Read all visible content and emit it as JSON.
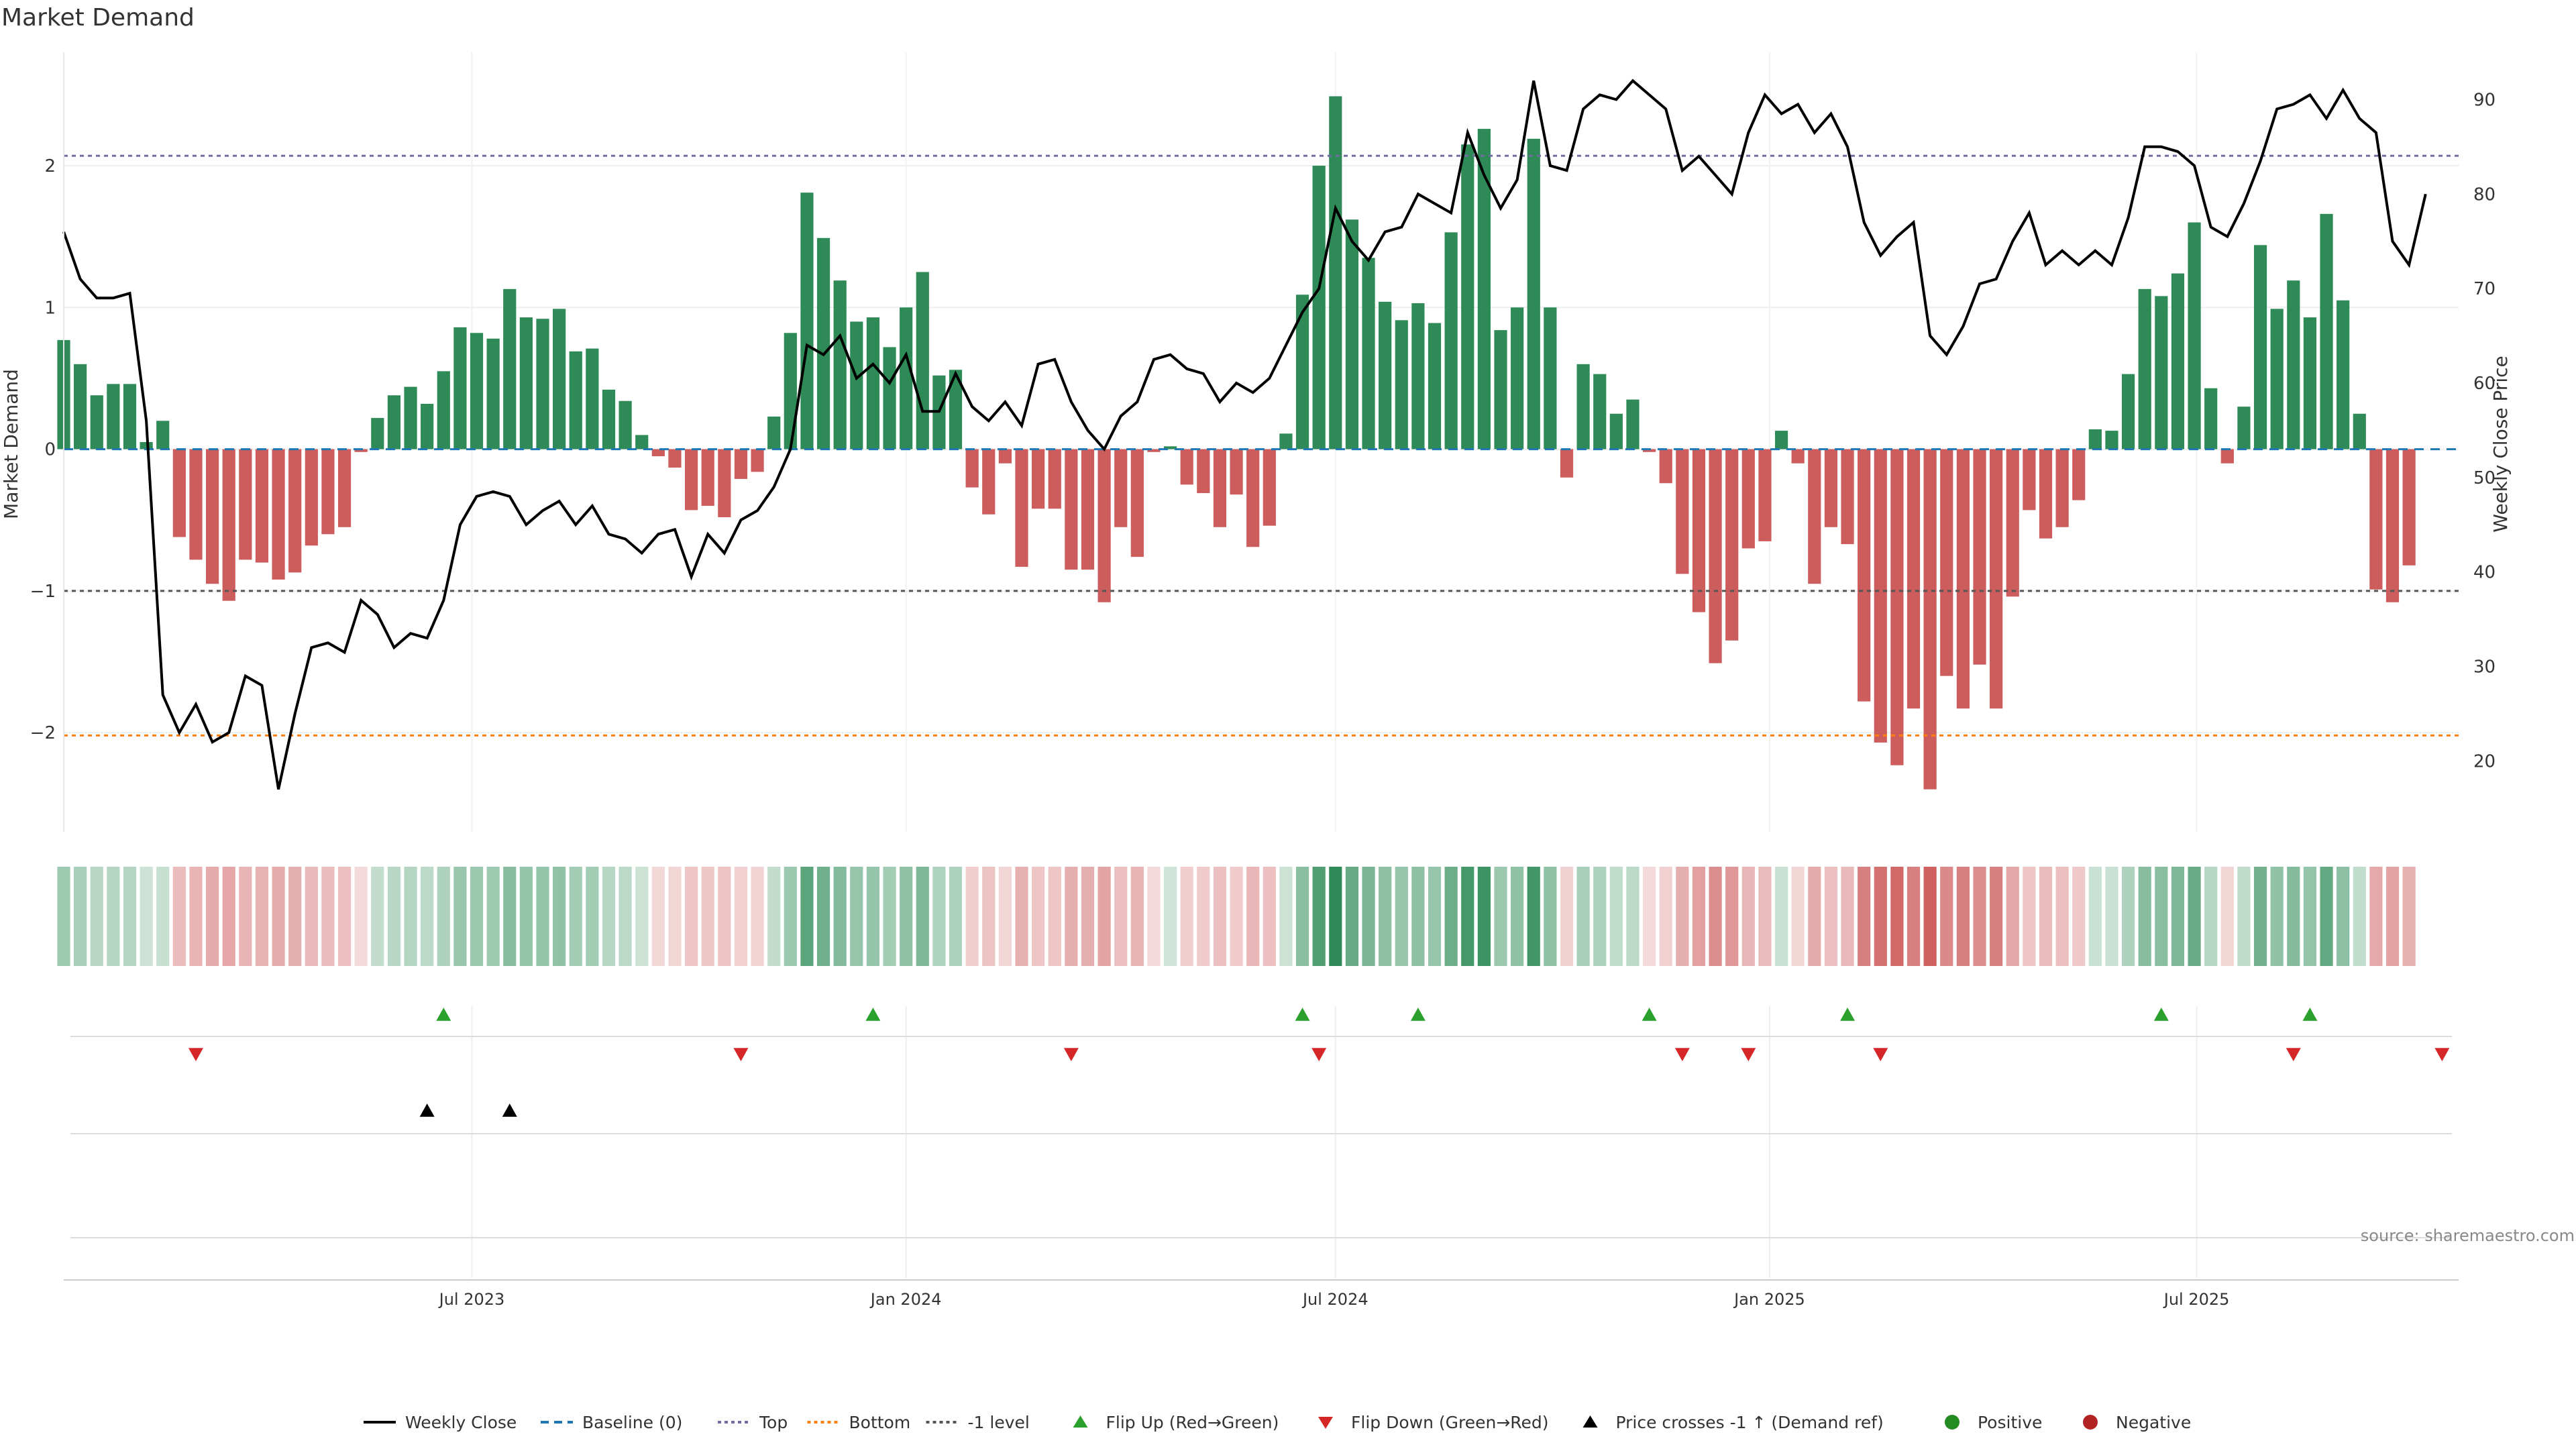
{
  "chart_data": {
    "type": "bar",
    "title": "Market Demand",
    "ylabel": "Market Demand",
    "y2label": "Weekly Close Price",
    "ylim": [
      -2.7,
      2.8
    ],
    "y2lim": [
      12.5,
      95
    ],
    "yticks": [
      -2,
      -1,
      0,
      1,
      2
    ],
    "y2ticks": [
      20,
      30,
      40,
      50,
      60,
      70,
      80,
      90
    ],
    "x_range": [
      "2023-01-09",
      "2025-10-20"
    ],
    "x_ticks": [
      {
        "date": "2023-07-01",
        "label": "Jul 2023"
      },
      {
        "date": "2024-01-01",
        "label": "Jan 2024"
      },
      {
        "date": "2024-07-01",
        "label": "Jul 2024"
      },
      {
        "date": "2025-01-01",
        "label": "Jan 2025"
      },
      {
        "date": "2025-07-01",
        "label": "Jul 2025"
      }
    ],
    "start_date": "2023-01-09",
    "levels": {
      "top": 2.07,
      "bottom": -2.02,
      "minus_one": -1.0,
      "baseline": 0
    },
    "demand": [
      0.77,
      0.6,
      0.38,
      0.46,
      0.46,
      0.05,
      0.2,
      -0.62,
      -0.78,
      -0.95,
      -1.07,
      -0.78,
      -0.8,
      -0.92,
      -0.87,
      -0.68,
      -0.6,
      -0.55,
      -0.02,
      0.22,
      0.38,
      0.44,
      0.32,
      0.55,
      0.86,
      0.82,
      0.78,
      1.13,
      0.93,
      0.92,
      0.99,
      0.69,
      0.71,
      0.42,
      0.34,
      0.1,
      -0.05,
      -0.13,
      -0.43,
      -0.4,
      -0.48,
      -0.21,
      -0.16,
      0.23,
      0.82,
      1.81,
      1.49,
      1.19,
      0.9,
      0.93,
      0.72,
      1.0,
      1.25,
      0.52,
      0.56,
      -0.27,
      -0.46,
      -0.1,
      -0.83,
      -0.42,
      -0.42,
      -0.85,
      -0.85,
      -1.08,
      -0.55,
      -0.76,
      -0.02,
      0.02,
      -0.25,
      -0.31,
      -0.55,
      -0.32,
      -0.69,
      -0.54,
      0.11,
      1.09,
      2.0,
      2.49,
      1.62,
      1.35,
      1.04,
      0.91,
      1.03,
      0.89,
      1.53,
      2.15,
      2.26,
      0.84,
      1.0,
      2.19,
      1.0,
      -0.2,
      0.6,
      0.53,
      0.25,
      0.35,
      -0.02,
      -0.24,
      -0.88,
      -1.15,
      -1.51,
      -1.35,
      -0.7,
      -0.65,
      0.13,
      -0.1,
      -0.95,
      -0.55,
      -0.67,
      -1.78,
      -2.07,
      -2.23,
      -1.83,
      -2.4,
      -1.6,
      -1.83,
      -1.52,
      -1.83,
      -1.04,
      -0.43,
      -0.63,
      -0.55,
      -0.36,
      0.14,
      0.13,
      0.53,
      1.13,
      1.08,
      1.24,
      1.6,
      0.43,
      -0.1,
      0.3,
      1.44,
      0.99,
      1.19,
      0.93,
      1.66,
      1.05,
      0.25,
      -0.99,
      -1.08,
      -0.82
    ],
    "close": [
      76,
      71,
      69,
      69,
      69.5,
      56,
      27,
      23,
      26,
      22,
      23,
      29,
      28,
      17,
      25,
      32,
      32.5,
      31.5,
      37,
      35.5,
      32,
      33.5,
      33,
      37,
      45,
      48,
      48.5,
      48,
      45,
      46.5,
      47.5,
      45,
      47,
      44,
      43.5,
      42,
      44,
      44.5,
      39.5,
      44,
      42,
      45.5,
      46.5,
      49,
      53,
      64,
      63,
      65,
      60.5,
      62,
      60,
      63,
      57,
      57,
      61,
      57.5,
      56,
      58,
      55.5,
      62,
      62.5,
      58,
      55,
      53,
      56.5,
      58,
      62.5,
      63,
      61.5,
      61,
      58,
      60,
      59,
      60.5,
      64,
      67.5,
      70,
      78.5,
      75,
      73,
      76,
      76.5,
      80,
      79,
      78,
      86.5,
      82,
      78.5,
      81.5,
      92,
      83,
      82.5,
      89,
      90.5,
      90,
      92,
      90.5,
      89,
      82.5,
      84,
      82,
      80,
      86.5,
      90.5,
      88.5,
      89.5,
      86.5,
      88.5,
      85,
      77,
      73.5,
      75.5,
      77,
      65,
      63,
      66,
      70.5,
      71,
      75,
      78,
      72.5,
      74,
      72.5,
      74,
      72.5,
      77.5,
      85,
      85,
      84.5,
      83,
      76.5,
      75.5,
      79,
      83.5,
      89,
      89.5,
      90.5,
      88,
      91,
      88,
      86.5,
      75,
      72.5,
      80
    ],
    "flip_up": [
      "2023-06-19",
      "2023-12-18",
      "2024-06-17",
      "2024-08-05",
      "2024-11-11",
      "2025-02-03",
      "2025-06-16",
      "2025-08-18"
    ],
    "flip_down": [
      "2023-03-06",
      "2023-10-23",
      "2024-03-11",
      "2024-06-24",
      "2024-11-25",
      "2024-12-23",
      "2025-02-17",
      "2025-08-11",
      "2025-10-13"
    ],
    "price_crosses": [
      "2023-06-12",
      "2023-07-17"
    ],
    "legend": {
      "position": "bottom",
      "entries": [
        {
          "label": "Weekly Close",
          "kind": "line",
          "color": "#000000"
        },
        {
          "label": "Baseline (0)",
          "kind": "dash",
          "color": "#1f77b4"
        },
        {
          "label": "Top",
          "kind": "dot",
          "color": "#6d6d9f"
        },
        {
          "label": "Bottom",
          "kind": "dot",
          "color": "#ff7f0e"
        },
        {
          "label": "-1 level",
          "kind": "dot",
          "color": "#555555"
        },
        {
          "label": "Flip Up (Red→Green)",
          "kind": "tri-up",
          "color": "#2ca02c"
        },
        {
          "label": "Flip Down (Green→Red)",
          "kind": "tri-down",
          "color": "#d62728"
        },
        {
          "label": "Price crosses -1 ↑ (Demand ref)",
          "kind": "tri-up",
          "color": "#000000"
        },
        {
          "label": "Positive",
          "kind": "dot-marker",
          "color": "#228b22"
        },
        {
          "label": "Negative",
          "kind": "dot-marker",
          "color": "#b22222"
        }
      ]
    },
    "colors": {
      "positive": "#2e8b57",
      "negative": "#cd5c5c",
      "close": "#000000"
    },
    "source": "source: sharemaestro.com"
  }
}
